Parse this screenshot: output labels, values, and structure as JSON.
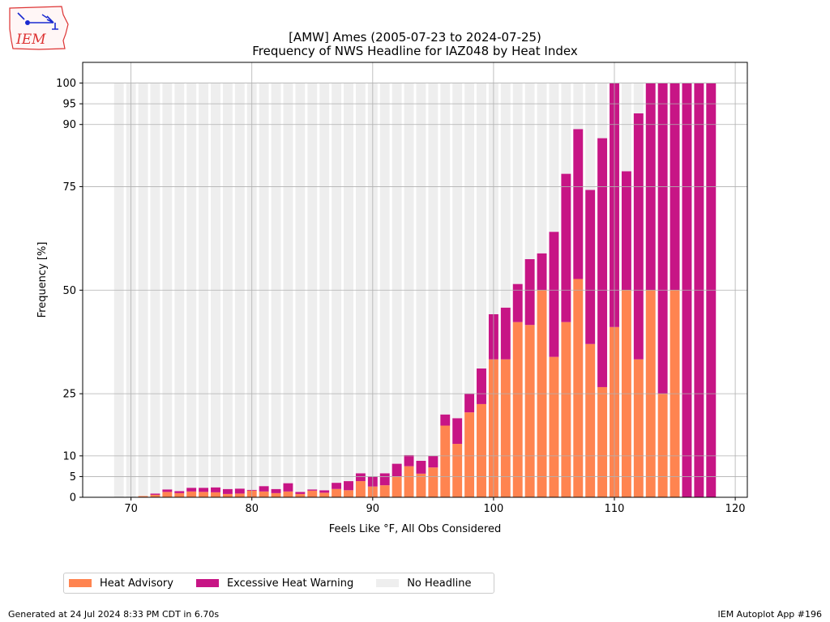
{
  "header": {
    "title_line1": "[AMW] Ames (2005-07-23 to 2024-07-25)",
    "title_line2": "Frequency of NWS Headline for IAZ048 by Heat Index"
  },
  "logo": {
    "text": "IEM"
  },
  "footer": {
    "left": "Generated at 24 Jul 2024 8:33 PM CDT in 6.70s",
    "right": "IEM Autoplot App #196"
  },
  "legend": {
    "items": [
      {
        "label": "Heat Advisory",
        "color": "#ff8450"
      },
      {
        "label": "Excessive Heat Warning",
        "color": "#c71585"
      },
      {
        "label": "No Headline",
        "color": "#eeeeee"
      }
    ]
  },
  "chart_data": {
    "type": "bar",
    "stacked": true,
    "xlabel": "Feels Like °F, All Obs Considered",
    "ylabel": "Frequency [%]",
    "xlim": [
      66,
      121
    ],
    "ylim": [
      0,
      105
    ],
    "xticks": [
      70,
      80,
      90,
      100,
      110,
      120
    ],
    "yticks": [
      0,
      5,
      10,
      25,
      50,
      75,
      90,
      95,
      100
    ],
    "grid": true,
    "legend_position": "bottom-left, below plot",
    "x": [
      69,
      70,
      71,
      72,
      73,
      74,
      75,
      76,
      77,
      78,
      79,
      80,
      81,
      82,
      83,
      84,
      85,
      86,
      87,
      88,
      89,
      90,
      91,
      92,
      93,
      94,
      95,
      96,
      97,
      98,
      99,
      100,
      101,
      102,
      103,
      104,
      105,
      106,
      107,
      108,
      109,
      110,
      111,
      112,
      113,
      114,
      115,
      116,
      117,
      118
    ],
    "series": [
      {
        "name": "Heat Advisory",
        "color": "#ff8450",
        "values": [
          0,
          0,
          0.3,
          0.6,
          1.3,
          1.0,
          1.4,
          1.3,
          1.2,
          0.8,
          0.9,
          1.6,
          1.4,
          1.0,
          1.4,
          0.8,
          1.6,
          1.1,
          2.0,
          1.7,
          3.9,
          2.6,
          2.9,
          5.0,
          7.5,
          5.7,
          7.2,
          17.3,
          12.9,
          20.5,
          22.5,
          33.3,
          33.3,
          42.3,
          41.6,
          50.0,
          33.9,
          42.3,
          52.7,
          37.0,
          26.6,
          41.1,
          50.0,
          33.3,
          50.0,
          25.0,
          50.0,
          0,
          0,
          0
        ]
      },
      {
        "name": "Excessive Heat Warning",
        "color": "#c71585",
        "values": [
          0,
          0,
          0,
          0.3,
          0.6,
          0.5,
          0.9,
          1.0,
          1.2,
          1.2,
          1.2,
          0.2,
          1.3,
          1.0,
          2.0,
          0.5,
          0.3,
          0.6,
          1.5,
          2.2,
          1.9,
          2.4,
          2.9,
          3.1,
          2.7,
          3.1,
          2.8,
          2.7,
          6.2,
          4.5,
          8.6,
          10.9,
          12.5,
          9.2,
          15.9,
          8.9,
          30.2,
          35.8,
          36.2,
          37.2,
          60.1,
          58.9,
          28.7,
          59.4,
          50.0,
          75.0,
          50.0,
          100,
          100,
          100
        ]
      },
      {
        "name": "No Headline",
        "color": "#eeeeee",
        "values": [
          100,
          100,
          99.7,
          99.1,
          98.1,
          98.5,
          97.7,
          97.7,
          97.6,
          98.0,
          97.9,
          98.2,
          97.3,
          98.0,
          96.6,
          98.7,
          98.1,
          98.3,
          96.5,
          96.1,
          94.2,
          95.0,
          94.2,
          91.9,
          89.8,
          91.2,
          90.0,
          80.0,
          80.9,
          75.0,
          68.9,
          55.8,
          54.2,
          48.5,
          42.5,
          41.1,
          35.9,
          21.9,
          11.1,
          25.8,
          13.3,
          0,
          21.3,
          7.3,
          0,
          0,
          0,
          0,
          0,
          0
        ]
      }
    ]
  }
}
